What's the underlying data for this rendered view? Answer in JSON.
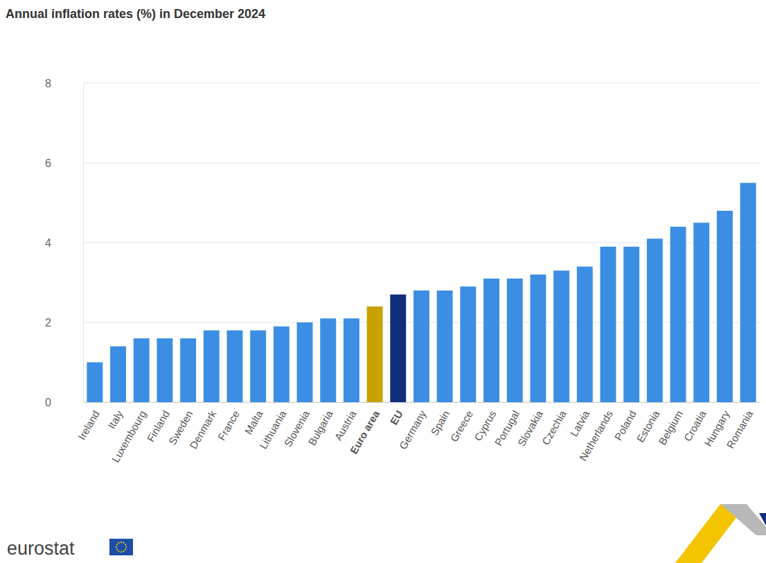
{
  "chart_data": {
    "type": "bar",
    "title": "Annual inflation rates (%) in December 2024",
    "categories": [
      "Ireland",
      "Italy",
      "Luxembourg",
      "Finland",
      "Sweden",
      "Denmark",
      "France",
      "Malta",
      "Lithuania",
      "Slovenia",
      "Bulgaria",
      "Austria",
      "Euro area",
      "EU",
      "Germany",
      "Spain",
      "Greece",
      "Cyprus",
      "Portugal",
      "Slovakia",
      "Czechia",
      "Latvia",
      "Netherlands",
      "Poland",
      "Estonia",
      "Belgium",
      "Croatia",
      "Hungary",
      "Romania"
    ],
    "values": [
      1.0,
      1.4,
      1.6,
      1.6,
      1.6,
      1.8,
      1.8,
      1.8,
      1.9,
      2.0,
      2.1,
      2.1,
      2.4,
      2.7,
      2.8,
      2.8,
      2.9,
      3.1,
      3.1,
      3.2,
      3.3,
      3.4,
      3.9,
      3.9,
      4.1,
      4.4,
      4.5,
      4.8,
      5.5
    ],
    "colors": [
      "#3b8ee3",
      "#3b8ee3",
      "#3b8ee3",
      "#3b8ee3",
      "#3b8ee3",
      "#3b8ee3",
      "#3b8ee3",
      "#3b8ee3",
      "#3b8ee3",
      "#3b8ee3",
      "#3b8ee3",
      "#3b8ee3",
      "#c9a100",
      "#0e2d7a",
      "#3b8ee3",
      "#3b8ee3",
      "#3b8ee3",
      "#3b8ee3",
      "#3b8ee3",
      "#3b8ee3",
      "#3b8ee3",
      "#3b8ee3",
      "#3b8ee3",
      "#3b8ee3",
      "#3b8ee3",
      "#3b8ee3",
      "#3b8ee3",
      "#3b8ee3",
      "#3b8ee3"
    ],
    "ylim": [
      0,
      8
    ],
    "yticks": [
      0,
      2,
      4,
      6,
      8
    ],
    "grid": true,
    "source": "eurostat"
  }
}
